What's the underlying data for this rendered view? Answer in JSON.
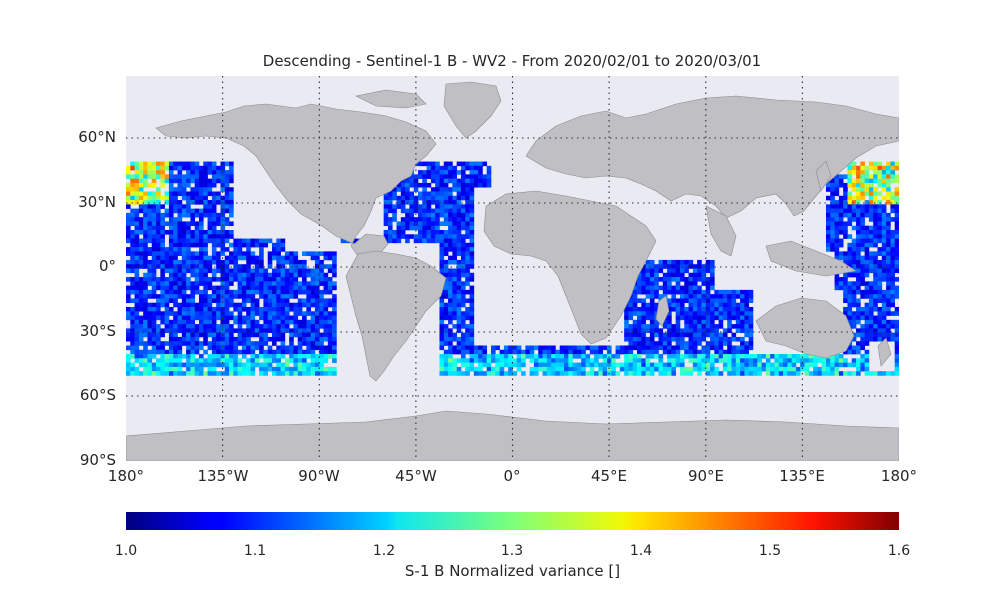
{
  "title": "Descending - Sentinel-1 B - WV2 - From 2020/02/01 to 2020/03/01",
  "lat_labels": [
    "60°N",
    "30°N",
    "0°",
    "30°S",
    "60°S",
    "90°S"
  ],
  "lon_labels": [
    "180°",
    "135°W",
    "90°W",
    "45°W",
    "0°",
    "45°E",
    "90°E",
    "135°E",
    "180°"
  ],
  "colorbar": {
    "label": "S-1 B Normalized variance []",
    "ticks": [
      "1.0",
      "1.1",
      "1.2",
      "1.3",
      "1.4",
      "1.5",
      "1.6"
    ],
    "vmin": 1.0,
    "vmax": 1.6,
    "colormap": "jet"
  },
  "colors": {
    "ocean_background": "#eaeaf2",
    "land": "#c0c0c4",
    "coastline": "#8a8a8e",
    "graticule": "#303030"
  },
  "data_coverage": {
    "lat_range": [
      -50,
      50
    ],
    "typical_value": 1.1,
    "high_value_regions": [
      {
        "name": "North Pacific (west)",
        "value": 1.45
      },
      {
        "name": "North Pacific (east)",
        "value": 1.3
      },
      {
        "name": "Southern Ocean belt",
        "value": 1.22
      }
    ]
  }
}
